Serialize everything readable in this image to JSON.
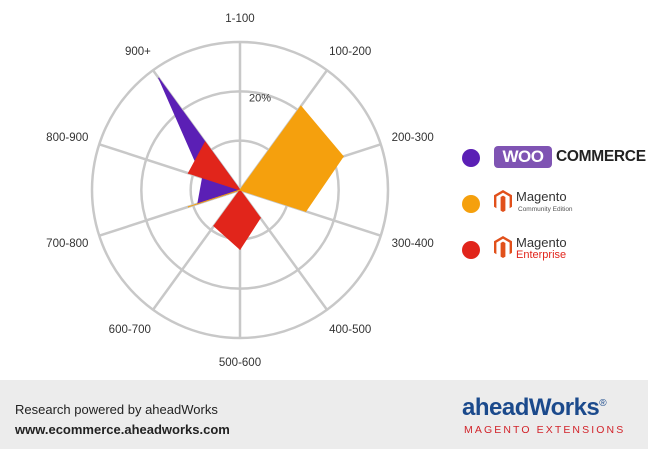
{
  "chart_data": {
    "type": "radar",
    "categories": [
      "1-100",
      "100-200",
      "200-300",
      "300-400",
      "400-500",
      "500-600",
      "600-700",
      "700-800",
      "800-900",
      "900+"
    ],
    "ring_label": "20%",
    "ring_values": [
      10,
      20,
      30
    ],
    "rmax": 30,
    "grid": true,
    "legend_position": "right",
    "series": [
      {
        "name": "WooCommerce",
        "color": "#5b1fb5",
        "values": [
          0,
          0,
          0,
          0,
          0,
          0,
          0,
          9,
          8,
          28
        ]
      },
      {
        "name": "Magento Enterprise",
        "color": "#e1251b",
        "values": [
          0,
          0,
          0,
          0,
          7,
          12,
          9,
          0,
          11,
          12
        ]
      },
      {
        "name": "Magento Community Edition",
        "color": "#f5a00d",
        "values": [
          0,
          21,
          22,
          14,
          0,
          0,
          0,
          11,
          0,
          0
        ]
      }
    ]
  },
  "legend": {
    "woo": {
      "badge": "WOO",
      "word": "COMMERCE"
    },
    "magento_ce": {
      "name": "Magento",
      "sub": "Community Edition"
    },
    "magento_ee": {
      "name": "Magento",
      "sub": "Enterprise"
    }
  },
  "footer": {
    "line1": "Research powered by aheadWorks",
    "line2": "www.ecommerce.aheadworks.com",
    "brand": "aheadWorks",
    "reg": "®",
    "tagline": "MAGENTO EXTENSIONS"
  }
}
